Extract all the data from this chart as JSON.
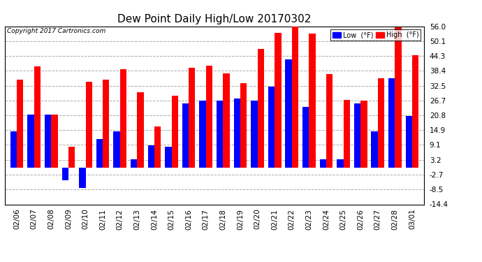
{
  "title": "Dew Point Daily High/Low 20170302",
  "copyright": "Copyright 2017 Cartronics.com",
  "ylabel_right_ticks": [
    -14.4,
    -8.5,
    -2.7,
    3.2,
    9.1,
    14.9,
    20.8,
    26.7,
    32.5,
    38.4,
    44.3,
    50.1,
    56.0
  ],
  "dates": [
    "02/06",
    "02/07",
    "02/08",
    "02/09",
    "02/10",
    "02/11",
    "02/12",
    "02/13",
    "02/14",
    "02/15",
    "02/16",
    "02/17",
    "02/18",
    "02/19",
    "02/20",
    "02/21",
    "02/22",
    "02/23",
    "02/24",
    "02/25",
    "02/26",
    "02/27",
    "02/28",
    "03/01"
  ],
  "high": [
    35.0,
    40.0,
    21.0,
    8.5,
    34.0,
    35.0,
    39.0,
    30.0,
    16.5,
    28.5,
    39.5,
    40.5,
    37.5,
    33.5,
    47.0,
    53.5,
    57.0,
    53.0,
    37.0,
    27.0,
    26.5,
    35.5,
    55.5,
    44.5
  ],
  "low": [
    14.5,
    21.0,
    21.0,
    -5.0,
    -8.0,
    11.5,
    14.5,
    3.5,
    9.0,
    8.5,
    25.5,
    26.5,
    26.5,
    27.5,
    26.5,
    32.0,
    43.0,
    24.0,
    3.5,
    3.5,
    25.5,
    14.5,
    35.5,
    20.5
  ],
  "bar_width": 0.38,
  "high_color": "#FF0000",
  "low_color": "#0000FF",
  "bg_color": "#FFFFFF",
  "grid_color": "#AAAAAA",
  "ylim": [
    -14.4,
    56.0
  ],
  "title_fontsize": 11,
  "tick_fontsize": 7.5,
  "legend_label_low": "Low  (°F)",
  "legend_label_high": "High  (°F)"
}
